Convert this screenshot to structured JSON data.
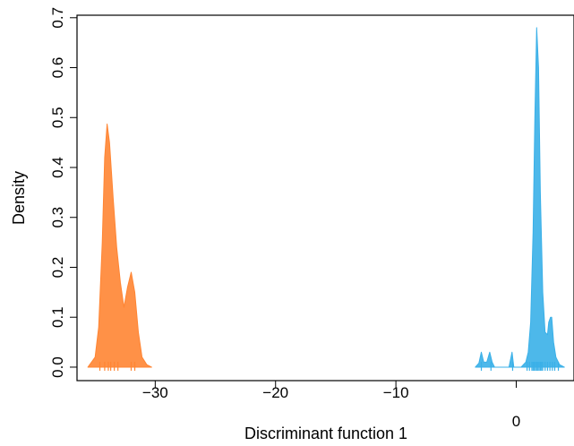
{
  "chart_data": {
    "type": "area",
    "title": "",
    "xlabel": "Discriminant function 1",
    "ylabel": "Density",
    "xlim": [
      -36.5,
      4.8
    ],
    "ylim": [
      -0.027,
      0.705
    ],
    "grid": false,
    "legend": "none",
    "x_ticks": [
      {
        "value": -30,
        "label": "−30"
      },
      {
        "value": -20,
        "label": "−20"
      },
      {
        "value": -10,
        "label": "−10"
      },
      {
        "value": 0,
        "label": "0"
      }
    ],
    "y_ticks": [
      {
        "value": 0.0,
        "label": "0.0"
      },
      {
        "value": 0.1,
        "label": "0.1"
      },
      {
        "value": 0.2,
        "label": "0.2"
      },
      {
        "value": 0.3,
        "label": "0.3"
      },
      {
        "value": 0.4,
        "label": "0.4"
      },
      {
        "value": 0.5,
        "label": "0.5"
      },
      {
        "value": 0.6,
        "label": "0.6"
      },
      {
        "value": 0.7,
        "label": "0.7"
      }
    ],
    "series": [
      {
        "color": "#ff8533",
        "x": [
          -35.6,
          -35.0,
          -34.7,
          -34.4,
          -34.2,
          -34.0,
          -33.8,
          -33.5,
          -33.2,
          -32.9,
          -32.6,
          -32.3,
          -32.0,
          -31.7,
          -31.4,
          -31.1,
          -30.7,
          -30.3
        ],
        "y": [
          0.0,
          0.02,
          0.08,
          0.25,
          0.42,
          0.487,
          0.45,
          0.34,
          0.24,
          0.17,
          0.12,
          0.16,
          0.19,
          0.15,
          0.07,
          0.02,
          0.005,
          0.0
        ],
        "rug": [
          -34.6,
          -34.2,
          -33.9,
          -33.7,
          -33.4,
          -33.1,
          -32.0,
          -31.7
        ]
      },
      {
        "color": "#3ab0e8",
        "x": [
          -3.4,
          -3.1,
          -2.9,
          -2.7,
          -2.45,
          -2.2,
          -2.0,
          -1.8,
          -0.6,
          -0.35,
          -0.2,
          0.4,
          0.8,
          1.0,
          1.2,
          1.4,
          1.55,
          1.7,
          1.85,
          2.0,
          2.2,
          2.4,
          2.6,
          2.7,
          2.85,
          2.95,
          3.1,
          3.3,
          3.6,
          4.0
        ],
        "y": [
          0.0,
          0.008,
          0.03,
          0.01,
          0.01,
          0.03,
          0.01,
          0.0,
          0.0,
          0.03,
          0.0,
          0.0,
          0.01,
          0.03,
          0.09,
          0.27,
          0.5,
          0.68,
          0.6,
          0.35,
          0.15,
          0.07,
          0.065,
          0.09,
          0.1,
          0.1,
          0.05,
          0.02,
          0.005,
          0.0
        ],
        "rug": [
          -2.9,
          -2.1,
          -0.3,
          0.9,
          1.1,
          1.3,
          1.4,
          1.5,
          1.6,
          1.7,
          1.8,
          1.9,
          2.0,
          2.1,
          2.2,
          2.4,
          2.6,
          2.8,
          3.0,
          3.2,
          3.5
        ]
      }
    ]
  }
}
